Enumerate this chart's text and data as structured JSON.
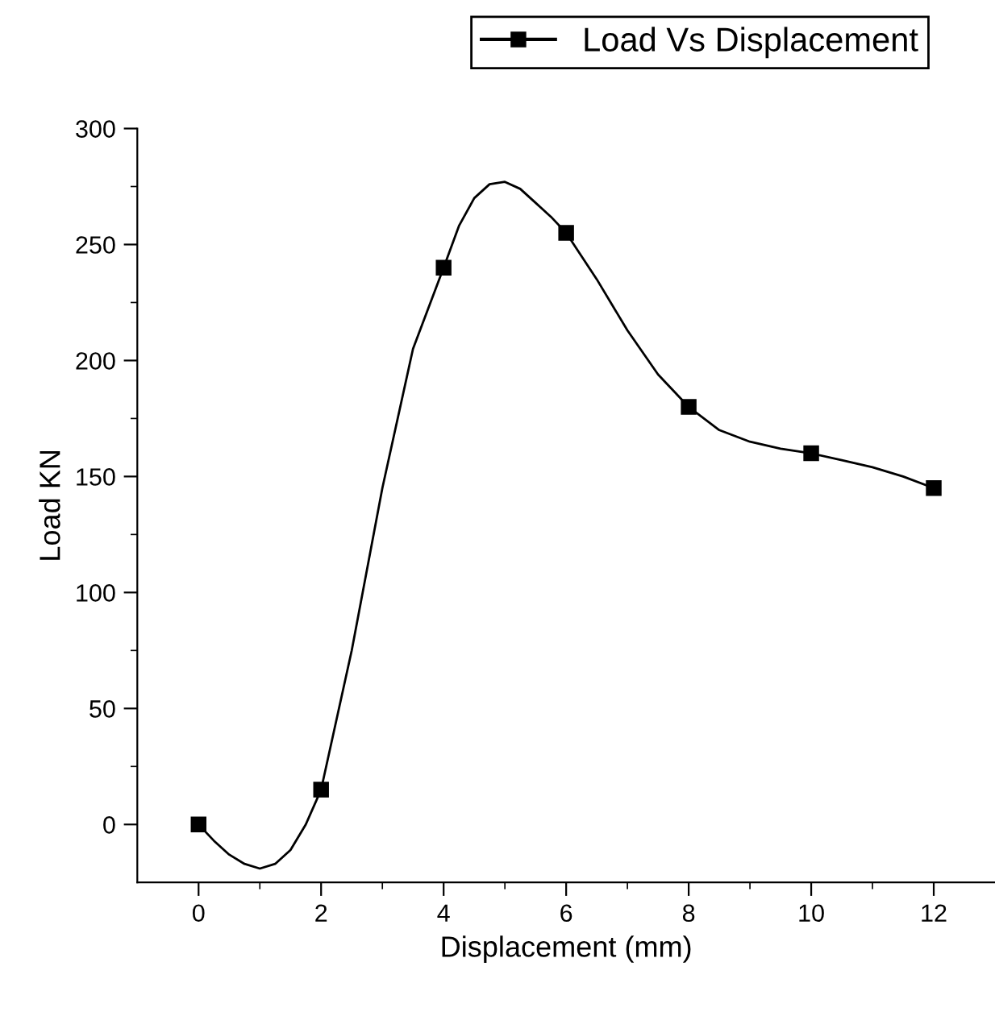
{
  "chart_data": {
    "type": "line",
    "xlabel": "Displacement (mm)",
    "ylabel": "Load KN",
    "series": [
      {
        "name": "Load Vs Displacement",
        "color": "#000000",
        "x": [
          0,
          0.25,
          0.5,
          0.75,
          1,
          1.25,
          1.5,
          1.75,
          2,
          2.5,
          3,
          3.5,
          4,
          4.25,
          4.5,
          4.75,
          5,
          5.25,
          5.5,
          5.75,
          6,
          6.5,
          7,
          7.5,
          8,
          8.5,
          9,
          9.5,
          10,
          10.5,
          11,
          11.5,
          12
        ],
        "values": [
          0,
          -7,
          -13,
          -17,
          -19,
          -17,
          -11,
          0,
          15,
          75,
          145,
          205,
          240,
          258,
          270,
          276,
          277,
          274,
          268,
          262,
          255,
          235,
          213,
          194,
          180,
          170,
          165,
          162,
          160,
          157,
          154,
          150,
          145
        ]
      },
      {
        "type": "scatter",
        "marker": "square",
        "color": "#000000",
        "x": [
          0,
          2,
          4,
          6,
          8,
          10,
          12
        ],
        "values": [
          0,
          15,
          240,
          255,
          180,
          160,
          145
        ]
      }
    ],
    "xlim": [
      -1,
      13
    ],
    "xticks": [
      0,
      {
        "value": 1,
        "label": null
      },
      2,
      {
        "value": 3,
        "label": null
      },
      4,
      {
        "value": 5,
        "label": null
      },
      6,
      {
        "value": 7,
        "label": null
      },
      8,
      {
        "value": 9,
        "label": null
      },
      10,
      {
        "value": 11,
        "label": null
      },
      12
    ],
    "ylim": [
      -25,
      300
    ],
    "yticks": [
      0,
      {
        "value": 25,
        "label": null
      },
      50,
      {
        "value": 75,
        "label": null
      },
      100,
      {
        "value": 125,
        "label": null
      },
      150,
      {
        "value": 175,
        "label": null
      },
      200,
      {
        "value": 225,
        "label": null
      },
      250,
      {
        "value": 275,
        "label": null
      },
      300
    ],
    "line_style": "solid",
    "legend": "top right",
    "grid": false
  }
}
